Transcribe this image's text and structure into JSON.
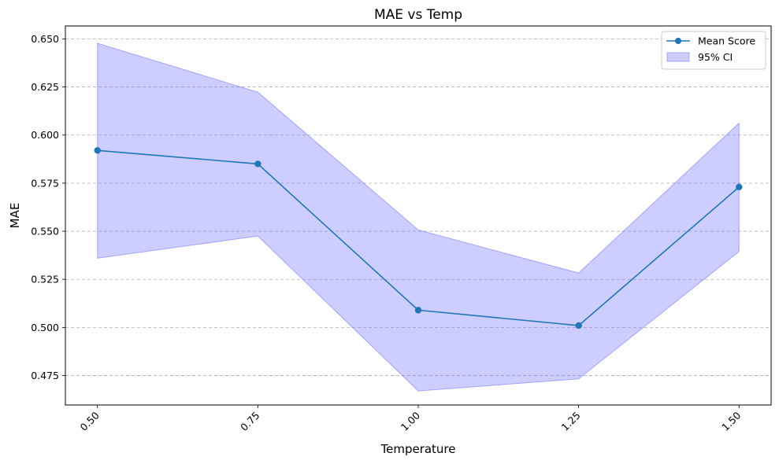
{
  "chart_data": {
    "type": "line",
    "title": "MAE vs Temp",
    "xlabel": "Temperature",
    "ylabel": "MAE",
    "x": [
      0.5,
      0.75,
      1.0,
      1.25,
      1.5
    ],
    "x_tick_labels": [
      "0.50",
      "0.75",
      "1.00",
      "1.25",
      "1.50"
    ],
    "y_ticks": [
      0.475,
      0.5,
      0.525,
      0.55,
      0.575,
      0.6,
      0.625,
      0.65
    ],
    "y_tick_labels": [
      "0.475",
      "0.500",
      "0.525",
      "0.550",
      "0.575",
      "0.600",
      "0.625",
      "0.650"
    ],
    "xlim": [
      0.45,
      1.55
    ],
    "ylim": [
      0.4597,
      0.6567
    ],
    "grid": "y-dashed",
    "legend_position": "top-right",
    "series": [
      {
        "name": "Mean Score",
        "values": [
          0.592,
          0.585,
          0.509,
          0.501,
          0.573
        ],
        "color": "#1f77b4"
      }
    ],
    "band": {
      "name": "95% CI",
      "lower": [
        0.536,
        0.5475,
        0.467,
        0.4733,
        0.5395
      ],
      "upper": [
        0.6477,
        0.6223,
        0.5507,
        0.5283,
        0.6062
      ],
      "color": "#6666ff"
    }
  }
}
